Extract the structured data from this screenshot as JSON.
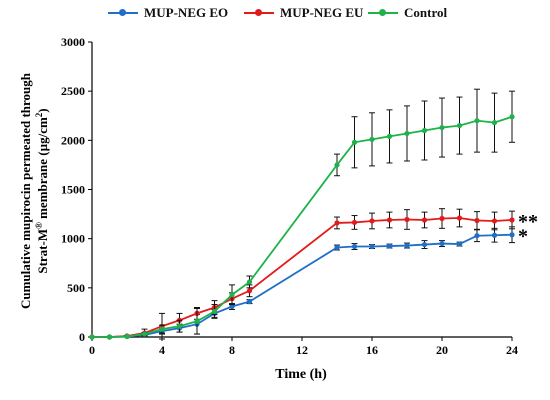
{
  "chart_data": {
    "type": "line",
    "xlabel": "Time (h)",
    "ylabel_line1": "Cumulative mupirocin permeated through",
    "ylabel_line2_prefix": "Strat-M",
    "ylabel_line2_sup": "®",
    "ylabel_line2_suffix": " membrane (µg/cm",
    "ylabel_line2_sup2": "2",
    "ylabel_line2_end": ")",
    "xlim": [
      0,
      24
    ],
    "ylim": [
      0,
      3000
    ],
    "xticks": [
      0,
      4,
      8,
      12,
      16,
      20,
      24
    ],
    "yticks": [
      0,
      500,
      1000,
      1500,
      2000,
      2500,
      3000
    ],
    "legend_position": "top",
    "series": [
      {
        "name": "MUP-NEG EO",
        "color": "#1f6fc8",
        "x": [
          0,
          1,
          2,
          3,
          4,
          5,
          6,
          7,
          8,
          9,
          14,
          15,
          16,
          17,
          18,
          19,
          20,
          21,
          22,
          23,
          24
        ],
        "y": [
          0,
          0,
          5,
          20,
          60,
          90,
          130,
          240,
          310,
          360,
          910,
          920,
          920,
          925,
          930,
          940,
          950,
          945,
          1030,
          1035,
          1040
        ],
        "err": [
          0,
          0,
          3,
          10,
          30,
          40,
          100,
          40,
          30,
          20,
          25,
          30,
          20,
          20,
          25,
          40,
          30,
          20,
          60,
          70,
          80
        ],
        "annotation": "*"
      },
      {
        "name": "MUP-NEG EU",
        "color": "#e31a1c",
        "x": [
          0,
          1,
          2,
          3,
          4,
          5,
          6,
          7,
          8,
          9,
          14,
          15,
          16,
          17,
          18,
          19,
          20,
          21,
          22,
          23,
          24
        ],
        "y": [
          0,
          0,
          10,
          40,
          110,
          170,
          240,
          300,
          390,
          470,
          1160,
          1165,
          1180,
          1190,
          1195,
          1190,
          1205,
          1210,
          1185,
          1180,
          1190
        ],
        "err": [
          0,
          0,
          5,
          40,
          130,
          70,
          60,
          70,
          60,
          60,
          60,
          70,
          80,
          80,
          100,
          80,
          100,
          90,
          90,
          90,
          90
        ],
        "annotation": "**"
      },
      {
        "name": "Control",
        "color": "#1db34a",
        "x": [
          0,
          1,
          2,
          3,
          4,
          5,
          6,
          7,
          8,
          9,
          14,
          15,
          16,
          17,
          18,
          19,
          20,
          21,
          22,
          23,
          24
        ],
        "y": [
          0,
          0,
          5,
          30,
          80,
          110,
          160,
          260,
          430,
          560,
          1750,
          1980,
          2010,
          2040,
          2070,
          2100,
          2130,
          2150,
          2200,
          2180,
          2240
        ],
        "err": [
          0,
          0,
          3,
          15,
          40,
          60,
          130,
          70,
          100,
          60,
          110,
          260,
          270,
          270,
          280,
          300,
          300,
          290,
          320,
          300,
          260
        ],
        "annotation": ""
      }
    ]
  }
}
